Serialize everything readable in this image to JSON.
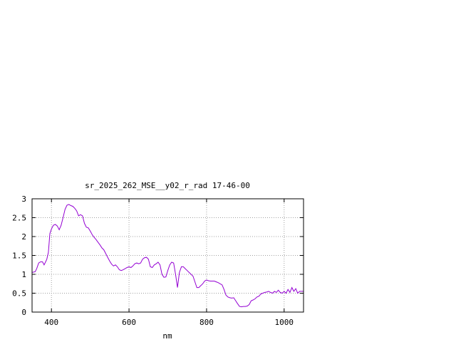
{
  "chart_data": {
    "type": "line",
    "title": "sr_2025_262_MSE__y02_r_rad 17-46-00",
    "xlabel": "nm",
    "ylabel": "",
    "xlim": [
      350,
      1050
    ],
    "ylim": [
      0,
      3
    ],
    "xticks": [
      400,
      600,
      800,
      1000
    ],
    "yticks": [
      0,
      0.5,
      1,
      1.5,
      2,
      2.5,
      3
    ],
    "xtick_labels": [
      "400",
      "600",
      "800",
      "1000"
    ],
    "ytick_labels": [
      "0",
      "0.5",
      "1",
      "1.5",
      "2",
      "2.5",
      "3"
    ],
    "grid": true,
    "line_color": "#9400d3",
    "series": [
      {
        "x": [
          350,
          358,
          362,
          367,
          372,
          377,
          381,
          385,
          388,
          392,
          396,
          400,
          405,
          410,
          415,
          420,
          425,
          430,
          435,
          440,
          445,
          450,
          455,
          460,
          465,
          470,
          475,
          480,
          485,
          490,
          495,
          500,
          505,
          510,
          515,
          520,
          525,
          530,
          535,
          540,
          545,
          550,
          555,
          560,
          565,
          570,
          575,
          580,
          585,
          590,
          595,
          600,
          605,
          610,
          615,
          620,
          625,
          630,
          635,
          640,
          645,
          650,
          655,
          660,
          665,
          670,
          675,
          680,
          685,
          690,
          695,
          700,
          705,
          710,
          715,
          720,
          725,
          730,
          735,
          740,
          745,
          750,
          755,
          760,
          765,
          770,
          775,
          780,
          785,
          790,
          795,
          800,
          805,
          810,
          815,
          820,
          825,
          830,
          835,
          840,
          845,
          850,
          855,
          860,
          865,
          870,
          875,
          880,
          885,
          890,
          895,
          900,
          905,
          910,
          915,
          920,
          925,
          930,
          935,
          940,
          945,
          950,
          955,
          960,
          965,
          970,
          975,
          980,
          985,
          990,
          995,
          1000,
          1005,
          1010,
          1015,
          1020,
          1025,
          1030,
          1035,
          1040,
          1045,
          1050
        ],
        "y": [
          1.05,
          1.07,
          1.15,
          1.3,
          1.33,
          1.33,
          1.25,
          1.33,
          1.4,
          1.58,
          2.08,
          2.2,
          2.3,
          2.32,
          2.28,
          2.18,
          2.3,
          2.5,
          2.72,
          2.83,
          2.85,
          2.82,
          2.8,
          2.75,
          2.68,
          2.55,
          2.58,
          2.55,
          2.35,
          2.25,
          2.23,
          2.15,
          2.05,
          1.98,
          1.92,
          1.85,
          1.78,
          1.7,
          1.65,
          1.55,
          1.45,
          1.35,
          1.27,
          1.22,
          1.25,
          1.2,
          1.12,
          1.1,
          1.12,
          1.15,
          1.18,
          1.2,
          1.18,
          1.22,
          1.28,
          1.3,
          1.28,
          1.3,
          1.4,
          1.44,
          1.45,
          1.4,
          1.2,
          1.18,
          1.25,
          1.28,
          1.32,
          1.25,
          1.0,
          0.92,
          0.93,
          1.1,
          1.25,
          1.32,
          1.3,
          1.0,
          0.65,
          1.05,
          1.2,
          1.2,
          1.15,
          1.1,
          1.05,
          1.0,
          0.95,
          0.8,
          0.65,
          0.65,
          0.7,
          0.75,
          0.82,
          0.85,
          0.83,
          0.82,
          0.82,
          0.82,
          0.8,
          0.78,
          0.75,
          0.72,
          0.6,
          0.45,
          0.4,
          0.38,
          0.37,
          0.38,
          0.3,
          0.22,
          0.15,
          0.14,
          0.15,
          0.15,
          0.16,
          0.2,
          0.3,
          0.32,
          0.35,
          0.4,
          0.42,
          0.48,
          0.5,
          0.52,
          0.53,
          0.55,
          0.52,
          0.5,
          0.55,
          0.52,
          0.58,
          0.52,
          0.5,
          0.55,
          0.5,
          0.6,
          0.52,
          0.65,
          0.55,
          0.62,
          0.5,
          0.55,
          0.55,
          0.55
        ]
      }
    ]
  }
}
